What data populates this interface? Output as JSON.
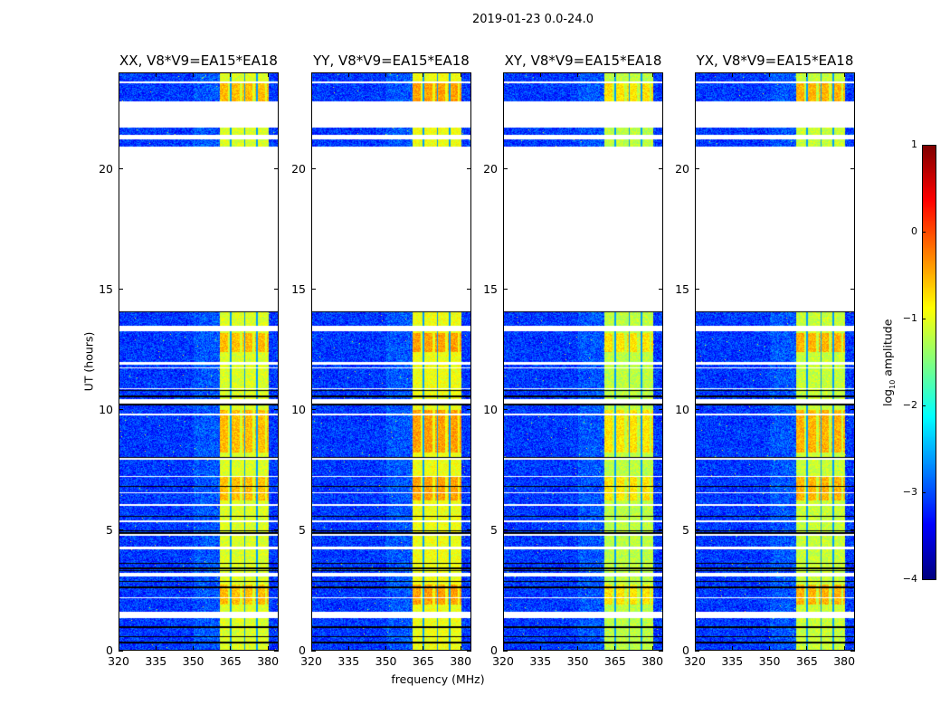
{
  "chart_data": {
    "type": "heatmap",
    "title": "2019-01-23 0.0-24.0",
    "xlabel": "frequency (MHz)",
    "ylabel": "UT (hours)",
    "xlim": [
      320,
      384.3
    ],
    "ylim": [
      0,
      24
    ],
    "xticks": [
      "320",
      "335",
      "350",
      "365",
      "380"
    ],
    "xtick_values": [
      320,
      335,
      350,
      365,
      380
    ],
    "yticks": [
      "0",
      "5",
      "10",
      "15",
      "20"
    ],
    "ytick_values": [
      0,
      5,
      10,
      15,
      20
    ],
    "panels": [
      {
        "title": "XX, V8*V9=EA15*EA18",
        "band_level": -1.05,
        "hot_level": -0.55
      },
      {
        "title": "YY, V8*V9=EA15*EA18",
        "band_level": -0.95,
        "hot_level": -0.4
      },
      {
        "title": "XY, V8*V9=EA15*EA18",
        "band_level": -1.2,
        "hot_level": -0.75
      },
      {
        "title": "YX, V8*V9=EA15*EA18",
        "band_level": -1.15,
        "hot_level": -0.5
      }
    ],
    "background_level": -3.1,
    "rfi_band_mhz": [
      360.7,
      380.5
    ],
    "band_dips_mhz": [
      365.3,
      370.9,
      375.8
    ],
    "hot_hours": [
      [
        12.4,
        13.2
      ],
      [
        8.2,
        10.0
      ],
      [
        6.2,
        7.2
      ],
      [
        1.9,
        2.7
      ],
      [
        22.8,
        23.6
      ]
    ],
    "flagged_white_hours": [
      [
        21.73,
        22.85
      ],
      [
        21.25,
        21.45
      ],
      [
        20.6,
        20.95
      ],
      [
        14.1,
        20.6
      ],
      [
        13.25,
        13.5
      ],
      [
        11.85,
        11.97
      ],
      [
        11.7,
        11.75
      ],
      [
        10.85,
        10.9
      ],
      [
        10.25,
        10.45
      ],
      [
        9.75,
        9.82
      ],
      [
        7.9,
        7.97
      ],
      [
        7.2,
        7.25
      ],
      [
        6.5,
        6.55
      ],
      [
        6.0,
        6.05
      ],
      [
        5.3,
        5.4
      ],
      [
        4.75,
        4.82
      ],
      [
        4.2,
        4.3
      ],
      [
        3.05,
        3.2
      ],
      [
        2.15,
        2.2
      ],
      [
        1.3,
        1.6
      ],
      [
        23.6,
        23.65
      ]
    ],
    "flagged_black_hours": [
      10.35,
      10.2,
      10.55,
      10.8,
      8.0,
      6.8,
      5.55,
      4.95,
      4.85,
      3.6,
      3.4,
      3.3,
      2.85,
      2.6,
      0.95,
      0.55,
      0.3,
      20.58,
      14.1
    ],
    "colorbar": {
      "label_prefix": "log",
      "label_sub": "10",
      "label_suffix": " amplitude",
      "vmin": -4,
      "vmax": 1,
      "ticks": [
        "1",
        "0",
        "−1",
        "−2",
        "−3",
        "−4"
      ],
      "tick_values": [
        1,
        0,
        -1,
        -2,
        -3,
        -4
      ]
    }
  }
}
